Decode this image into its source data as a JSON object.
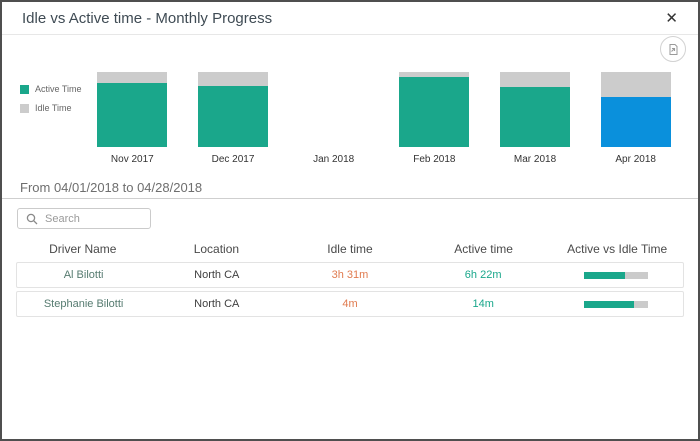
{
  "dialog": {
    "title": "Idle vs Active time - Monthly Progress",
    "close_glyph": "✕"
  },
  "toolbar": {
    "export_icon": "export-report-icon"
  },
  "colors": {
    "active": "#1aa78b",
    "idle": "#cccccc",
    "selected_blue": "#0a90dc",
    "idle_text_orange": "#e07b4f"
  },
  "chart": {
    "legend": [
      {
        "label": "Active Time",
        "color": "#1aa78b"
      },
      {
        "label": "Idle Time",
        "color": "#cccccc"
      }
    ],
    "months": [
      {
        "label": "Nov 2017",
        "active_pct": 85,
        "idle_pct": 15,
        "selected": false,
        "has_data": true
      },
      {
        "label": "Dec 2017",
        "active_pct": 81,
        "idle_pct": 19,
        "selected": false,
        "has_data": true
      },
      {
        "label": "Jan 2018",
        "active_pct": 0,
        "idle_pct": 0,
        "selected": false,
        "has_data": false
      },
      {
        "label": "Feb 2018",
        "active_pct": 93,
        "idle_pct": 7,
        "selected": false,
        "has_data": true
      },
      {
        "label": "Mar 2018",
        "active_pct": 80,
        "idle_pct": 20,
        "selected": false,
        "has_data": true
      },
      {
        "label": "Apr 2018",
        "active_pct": 67,
        "idle_pct": 33,
        "selected": true,
        "has_data": true
      }
    ]
  },
  "chart_data": {
    "type": "bar",
    "subtype": "stacked-100-percent",
    "categories": [
      "Nov 2017",
      "Dec 2017",
      "Jan 2018",
      "Feb 2018",
      "Mar 2018",
      "Apr 2018"
    ],
    "series": [
      {
        "name": "Active Time",
        "values_pct": [
          85,
          81,
          null,
          93,
          80,
          67
        ]
      },
      {
        "name": "Idle Time",
        "values_pct": [
          15,
          19,
          null,
          7,
          20,
          33
        ]
      }
    ],
    "selected_category": "Apr 2018",
    "selected_active_color": "#0a90dc",
    "legend_position": "left",
    "note_visible_in_pixels": "Jan 2018 has no bar; Apr 2018 active segment is blue (selected)"
  },
  "period": {
    "label": "From 04/01/2018 to 04/28/2018"
  },
  "search": {
    "placeholder": "Search",
    "value": ""
  },
  "table": {
    "columns": [
      "Driver Name",
      "Location",
      "Idle time",
      "Active time",
      "Active vs Idle Time"
    ],
    "rows": [
      {
        "driver": "Al Bilotti",
        "location": "North CA",
        "idle": "3h 31m",
        "active": "6h 22m",
        "active_pct": 64
      },
      {
        "driver": "Stephanie Bilotti",
        "location": "North CA",
        "idle": "4m",
        "active": "14m",
        "active_pct": 78
      }
    ]
  }
}
